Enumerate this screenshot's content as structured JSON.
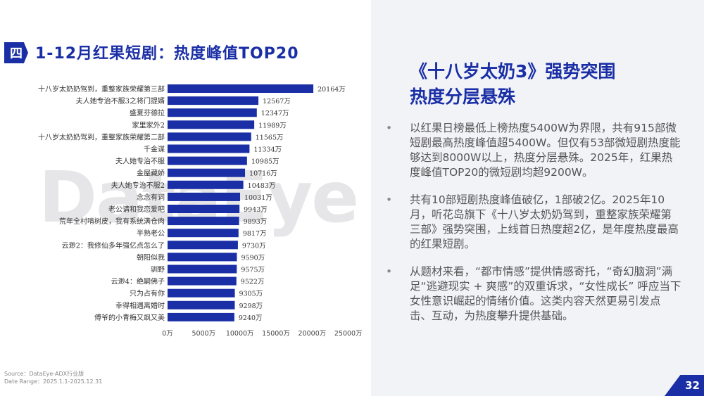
{
  "section": {
    "badge": "四",
    "title": "1-12月红果短剧：热度峰值TOP20"
  },
  "watermark": "DataEye",
  "chart_data": {
    "type": "bar",
    "orientation": "horizontal",
    "categories": [
      "十八岁太奶奶驾到，重整家族荣耀第三部",
      "夫人她专治不服3之将门提婿",
      "盛夏芬德拉",
      "家里家外2",
      "十八岁太奶奶驾到，重整家族荣耀第二部",
      "千金谋",
      "夫人她专治不服",
      "金屋藏娇",
      "夫人她专治不服2",
      "念念有词",
      "老公请和我恋爱吧",
      "荒年全村啃树皮，我有系统满仓肉",
      "半熟老公",
      "云渺2：我修仙多年强亿点怎么了",
      "朝阳似我",
      "驯野",
      "云渺4：绝嗣佛子",
      "只为占有你",
      "幸得相遇离婚时",
      "傅爷的小青梅又飒又美"
    ],
    "values": [
      20164,
      12567,
      12347,
      11989,
      11565,
      11334,
      10985,
      10716,
      10483,
      10031,
      9943,
      9893,
      9817,
      9730,
      9590,
      9575,
      9522,
      9305,
      9298,
      9240
    ],
    "value_labels": [
      "20164万",
      "12567万",
      "12347万",
      "11989万",
      "11565万",
      "11334万",
      "10985万",
      "10716万",
      "10483万",
      "10031万",
      "9943万",
      "9893万",
      "9817万",
      "9730万",
      "9590万",
      "9575万",
      "9522万",
      "9305万",
      "9298万",
      "9240万"
    ],
    "xlim": [
      0,
      25000
    ],
    "xticks": [
      "0万",
      "5000万",
      "10000万",
      "15000万",
      "20000万",
      "25000万"
    ],
    "bar_color": "#1a2fa6",
    "grid": false
  },
  "source": {
    "line1": "Source：DataEye-ADX行业版",
    "line2": "Date Range：2025.1.1-2025.12.31"
  },
  "headline": {
    "line1": "《十八岁太奶3》强势突围",
    "line2": "热度分层悬殊"
  },
  "bullets": [
    "以红果日榜最低上榜热度5400W为界限，共有915部微短剧最高热度峰值超5400W。但仅有53部微短剧热度能够达到8000W以上，热度分层悬殊。2025年，红果热度峰值TOP20的微短剧均超9200W。",
    "共有10部短剧热度峰值破亿，1部破2亿。2025年10月，听花岛旗下《十八岁太奶奶驾到，重整家族荣耀第三部》强势突围，上线首日热度超2亿，是年度热度最高的红果短剧。",
    "从题材来看，“都市情感”提供情感寄托，“奇幻脑洞”满足“逃避现实 + 爽感”的双重诉求，“女性成长” 呼应当下女性意识崛起的情绪价值。这类内容天然更易引发点击、互动，为热度攀升提供基础。"
  ],
  "bullet_marker": "•",
  "page_number": "32",
  "colors": {
    "brand": "#1a2fa6",
    "panel": "#f2f3f7"
  }
}
